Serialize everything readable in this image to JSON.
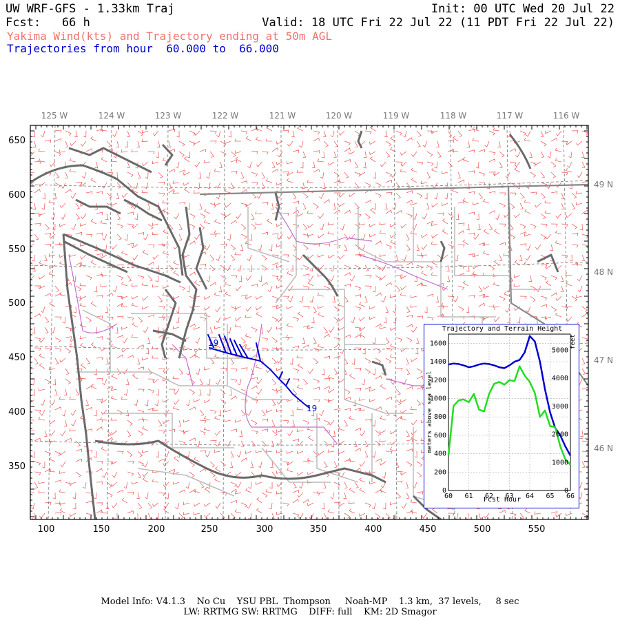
{
  "header": {
    "title": "UW WRF-GFS - 1.33km Traj",
    "fcst": "Fcst:   66 h",
    "init": "Init: 00 UTC Wed 20 Jul 22",
    "valid": "Valid: 18 UTC Fri 22 Jul 22 (11 PDT Fri 22 Jul 22)",
    "subtitle": "Yakima Wind(kts) and Trajectory ending at 50m AGL",
    "traj_range": "Trajectories from hour  60.000 to  66.000"
  },
  "colors": {
    "wind_barbs": "#f06060",
    "coastline": "#6a6a6a",
    "state_borders": "#888888",
    "county_borders": "#bbbbbb",
    "rivers": "#c070d0",
    "trajectory": "#0000cc",
    "trajectory_height": "#0000cc",
    "terrain_height": "#22dd22"
  },
  "map": {
    "x_ticks": [
      "100",
      "150",
      "200",
      "250",
      "300",
      "350",
      "400",
      "450",
      "500",
      "550"
    ],
    "y_ticks": [
      "650",
      "600",
      "550",
      "500",
      "450",
      "400",
      "350"
    ],
    "lon_labels": [
      "125 W",
      "124 W",
      "123 W",
      "122 W",
      "121 W",
      "120 W",
      "119 W",
      "118 W",
      "117 W",
      "116 W"
    ],
    "lat_labels": [
      "49 N",
      "48 N",
      "47 N",
      "46 N"
    ],
    "trajectory_label_start": "19",
    "trajectory_label_end": "19"
  },
  "chart_data": {
    "type": "line",
    "title": "Trajectory and Terrain Height",
    "xlabel": "Fcst Hour",
    "ylabel": "meters above sea level",
    "ylabel_right": "feet",
    "xlim": [
      60,
      66
    ],
    "ylim": [
      0,
      1700
    ],
    "x_ticks": [
      "60",
      "61",
      "62",
      "63",
      "64",
      "65",
      "66"
    ],
    "y_ticks": [
      "0",
      "200",
      "400",
      "600",
      "800",
      "1000",
      "1200",
      "1400",
      "1600"
    ],
    "y_ticks_right": [
      "0",
      "1000",
      "2000",
      "3000",
      "4000",
      "5000"
    ],
    "grid": true,
    "series": [
      {
        "key": "trajectory",
        "x": [
          60.0,
          60.25,
          60.5,
          60.75,
          61.0,
          61.25,
          61.5,
          61.75,
          62.0,
          62.25,
          62.5,
          62.75,
          63.0,
          63.25,
          63.5,
          63.75,
          64.0,
          64.25,
          64.5,
          64.75,
          65.0,
          65.25,
          65.5,
          65.75,
          66.0
        ],
        "y": [
          1370,
          1380,
          1375,
          1360,
          1340,
          1350,
          1370,
          1380,
          1375,
          1360,
          1340,
          1330,
          1360,
          1400,
          1420,
          1500,
          1680,
          1620,
          1400,
          1100,
          850,
          680,
          600,
          480,
          380
        ]
      },
      {
        "key": "terrain",
        "x": [
          60.0,
          60.25,
          60.5,
          60.75,
          61.0,
          61.25,
          61.5,
          61.75,
          62.0,
          62.25,
          62.5,
          62.75,
          63.0,
          63.25,
          63.5,
          63.75,
          64.0,
          64.25,
          64.5,
          64.75,
          65.0,
          65.25,
          65.5,
          65.75,
          66.0
        ],
        "y": [
          380,
          920,
          980,
          990,
          960,
          1050,
          880,
          860,
          1050,
          1160,
          1180,
          1150,
          1200,
          1190,
          1350,
          1250,
          1180,
          1060,
          800,
          870,
          700,
          690,
          480,
          340,
          280
        ]
      }
    ]
  },
  "footer": {
    "line1": "Model Info: V4.1.3    No Cu    YSU PBL  Thompson     Noah-MP    1.3 km,  37 levels,     8 sec",
    "line2": "LW: RRTMG SW: RRTMG    DIFF: full    KM: 2D Smagor"
  }
}
